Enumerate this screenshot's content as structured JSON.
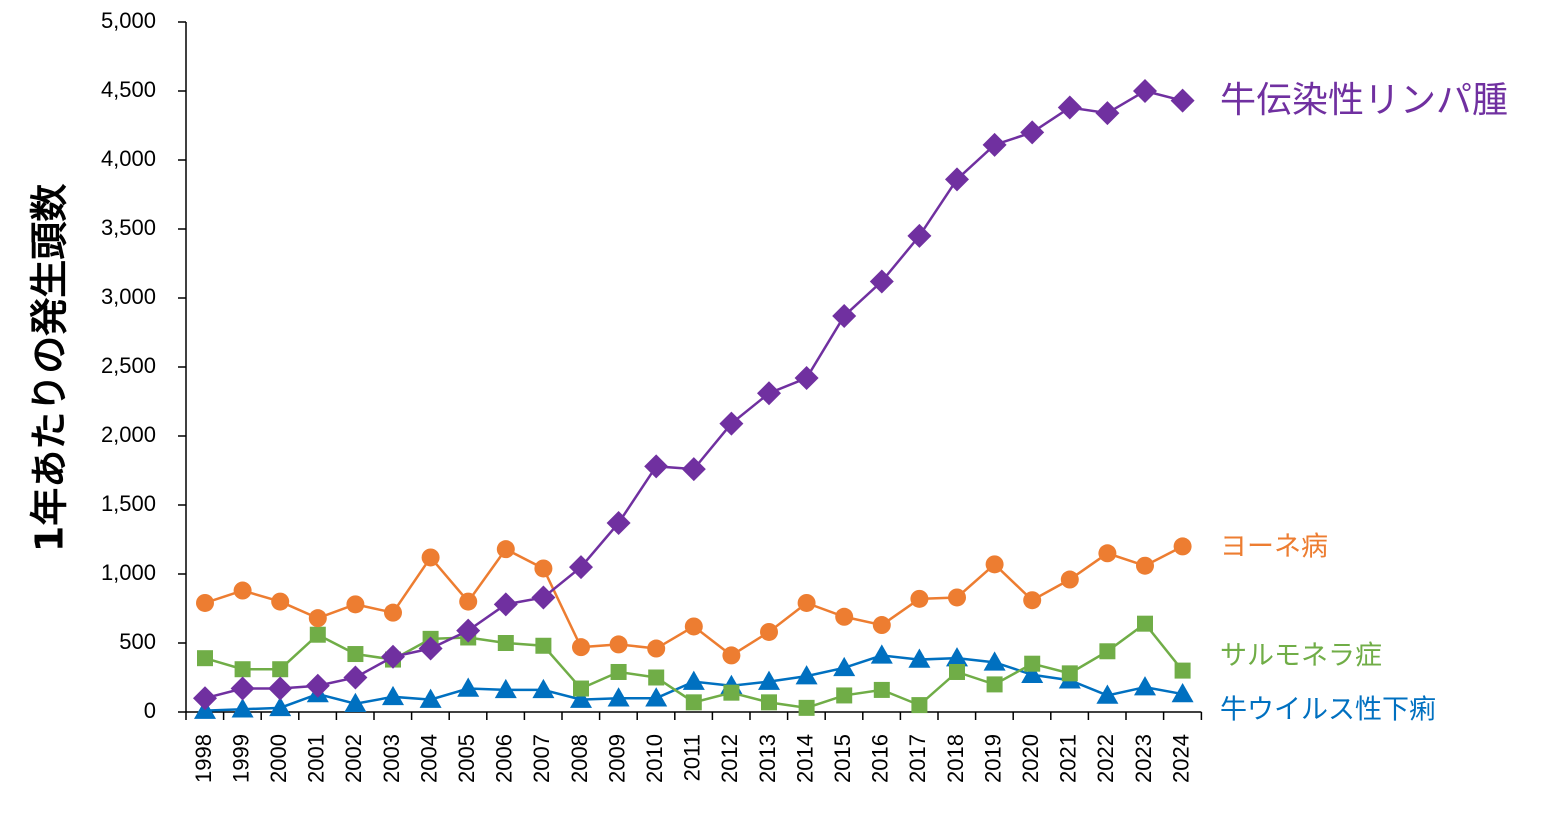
{
  "chart_data": {
    "type": "line",
    "title": "",
    "xlabel": "",
    "ylabel": "1年あたりの発生頭数",
    "ylim": [
      0,
      5000
    ],
    "yticks": [
      "0",
      "500",
      "1,000",
      "1,500",
      "2,000",
      "2,500",
      "3,000",
      "3,500",
      "4,000",
      "4,500",
      "5,000"
    ],
    "grid": false,
    "legend": "direct labels at line ends (right)",
    "categories": [
      "1998",
      "1999",
      "2000",
      "2001",
      "2002",
      "2003",
      "2004",
      "2005",
      "2006",
      "2007",
      "2008",
      "2009",
      "2010",
      "2011",
      "2012",
      "2013",
      "2014",
      "2015",
      "2016",
      "2017",
      "2018",
      "2019",
      "2020",
      "2021",
      "2022",
      "2023",
      "2024"
    ],
    "series": [
      {
        "name": "牛伝染性リンパ腫",
        "color": "#7030A0",
        "marker": "diamond",
        "values": [
          100,
          170,
          170,
          190,
          250,
          400,
          460,
          590,
          780,
          830,
          1050,
          1370,
          1780,
          1760,
          2090,
          2310,
          2420,
          2870,
          3120,
          3450,
          3860,
          4110,
          4200,
          4380,
          4340,
          4500,
          4430
        ]
      },
      {
        "name": "ヨーネ病",
        "color": "#ED7D31",
        "marker": "circle",
        "values": [
          790,
          880,
          800,
          680,
          780,
          720,
          1120,
          800,
          1180,
          1040,
          470,
          490,
          460,
          620,
          410,
          580,
          790,
          690,
          630,
          820,
          830,
          1070,
          810,
          960,
          1150,
          1060,
          1200
        ]
      },
      {
        "name": "サルモネラ症",
        "color": "#70AD47",
        "marker": "square",
        "values": [
          390,
          310,
          310,
          560,
          420,
          380,
          530,
          540,
          500,
          480,
          170,
          290,
          250,
          70,
          140,
          70,
          30,
          120,
          160,
          50,
          290,
          200,
          350,
          280,
          440,
          640,
          300
        ]
      },
      {
        "name": "牛ウイルス性下痢",
        "color": "#0070C0",
        "marker": "triangle",
        "values": [
          10,
          20,
          30,
          130,
          60,
          110,
          90,
          170,
          160,
          160,
          90,
          100,
          100,
          220,
          190,
          220,
          260,
          320,
          410,
          380,
          390,
          360,
          270,
          230,
          120,
          180,
          130
        ]
      }
    ]
  }
}
